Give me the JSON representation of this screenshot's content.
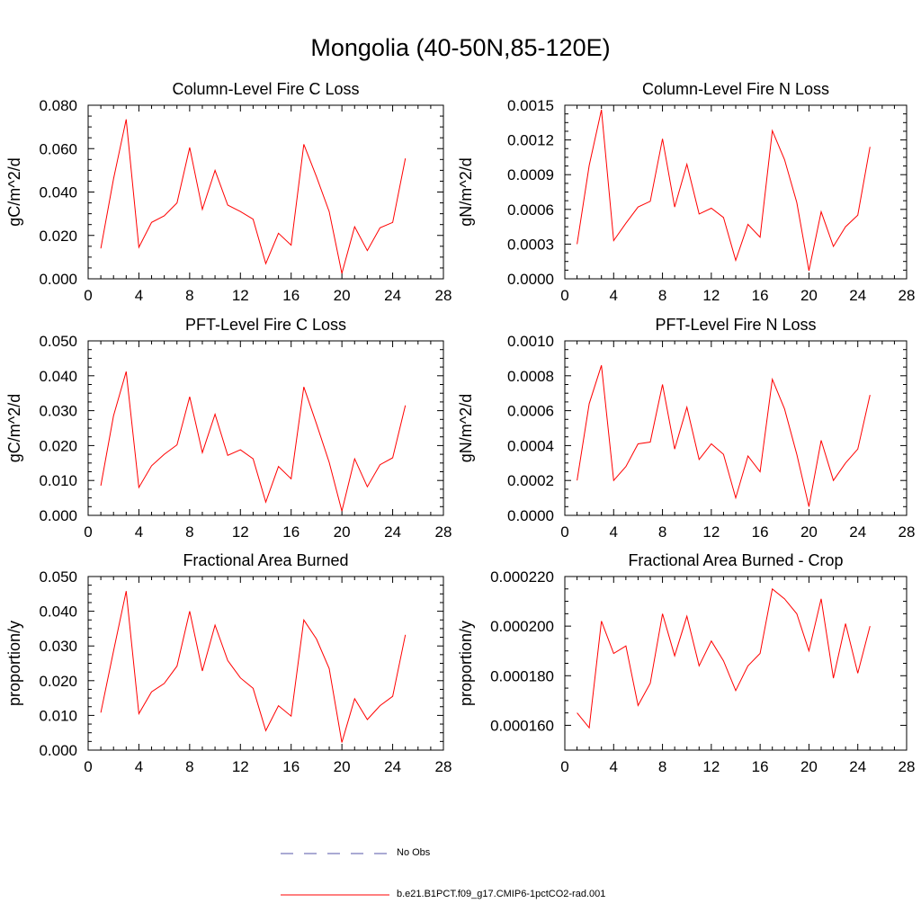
{
  "title": "Mongolia (40-50N,85-120E)",
  "legend": {
    "obs_label": "No Obs",
    "model_label": "b.e21.B1PCT.f09_g17.CMIP6-1pctCO2-rad.001",
    "obs_color": "#5555aa",
    "model_color": "#ff0000"
  },
  "chart_data": [
    {
      "type": "line",
      "title": "Column-Level Fire C Loss",
      "ylabel": "gC/m^2/d",
      "xlim": [
        0,
        28
      ],
      "ylim": [
        0,
        0.08
      ],
      "xticks": [
        "0",
        "4",
        "8",
        "12",
        "16",
        "20",
        "24",
        "28"
      ],
      "yticks": [
        "0.000",
        "0.020",
        "0.040",
        "0.060",
        "0.080"
      ],
      "x": [
        1,
        2,
        3,
        4,
        5,
        6,
        7,
        8,
        9,
        10,
        11,
        12,
        13,
        14,
        15,
        16,
        17,
        18,
        19,
        20,
        21,
        22,
        23,
        24,
        25
      ],
      "series": [
        {
          "values": [
            0.014,
            0.046,
            0.0735,
            0.0145,
            0.026,
            0.029,
            0.035,
            0.0605,
            0.032,
            0.05,
            0.034,
            0.031,
            0.0275,
            0.007,
            0.021,
            0.0155,
            0.062,
            0.047,
            0.031,
            0.0025,
            0.024,
            0.013,
            0.0235,
            0.026,
            0.0555
          ],
          "color": "#ff0000"
        }
      ]
    },
    {
      "type": "line",
      "title": "Column-Level Fire N Loss",
      "ylabel": "gN/m^2/d",
      "xlim": [
        0,
        28
      ],
      "ylim": [
        0,
        0.0015
      ],
      "xticks": [
        "0",
        "4",
        "8",
        "12",
        "16",
        "20",
        "24",
        "28"
      ],
      "yticks": [
        "0.0000",
        "0.0003",
        "0.0006",
        "0.0009",
        "0.0012",
        "0.0015"
      ],
      "x": [
        1,
        2,
        3,
        4,
        5,
        6,
        7,
        8,
        9,
        10,
        11,
        12,
        13,
        14,
        15,
        16,
        17,
        18,
        19,
        20,
        21,
        22,
        23,
        24,
        25
      ],
      "series": [
        {
          "values": [
            0.0003,
            0.00098,
            0.00146,
            0.00033,
            0.00048,
            0.00062,
            0.00067,
            0.00121,
            0.00062,
            0.00099,
            0.00056,
            0.00061,
            0.00053,
            0.00016,
            0.00047,
            0.00036,
            0.00128,
            0.00103,
            0.00066,
            7e-05,
            0.00058,
            0.00028,
            0.00045,
            0.00055,
            0.00114
          ],
          "color": "#ff0000"
        }
      ]
    },
    {
      "type": "line",
      "title": "PFT-Level Fire C Loss",
      "ylabel": "gC/m^2/d",
      "xlim": [
        0,
        28
      ],
      "ylim": [
        0,
        0.05
      ],
      "xticks": [
        "0",
        "4",
        "8",
        "12",
        "16",
        "20",
        "24",
        "28"
      ],
      "yticks": [
        "0.000",
        "0.010",
        "0.020",
        "0.030",
        "0.040",
        "0.050"
      ],
      "x": [
        1,
        2,
        3,
        4,
        5,
        6,
        7,
        8,
        9,
        10,
        11,
        12,
        13,
        14,
        15,
        16,
        17,
        18,
        19,
        20,
        21,
        22,
        23,
        24,
        25
      ],
      "series": [
        {
          "values": [
            0.0085,
            0.0285,
            0.0412,
            0.008,
            0.0142,
            0.0175,
            0.0202,
            0.034,
            0.018,
            0.029,
            0.0172,
            0.0188,
            0.0162,
            0.0038,
            0.014,
            0.0105,
            0.0368,
            0.0262,
            0.0152,
            0.0012,
            0.0162,
            0.0082,
            0.0145,
            0.0165,
            0.0315
          ],
          "color": "#ff0000"
        }
      ]
    },
    {
      "type": "line",
      "title": "PFT-Level Fire N Loss",
      "ylabel": "gN/m^2/d",
      "xlim": [
        0,
        28
      ],
      "ylim": [
        0,
        0.001
      ],
      "xticks": [
        "0",
        "4",
        "8",
        "12",
        "16",
        "20",
        "24",
        "28"
      ],
      "yticks": [
        "0.0000",
        "0.0002",
        "0.0004",
        "0.0006",
        "0.0008",
        "0.0010"
      ],
      "x": [
        1,
        2,
        3,
        4,
        5,
        6,
        7,
        8,
        9,
        10,
        11,
        12,
        13,
        14,
        15,
        16,
        17,
        18,
        19,
        20,
        21,
        22,
        23,
        24,
        25
      ],
      "series": [
        {
          "values": [
            0.0002,
            0.00064,
            0.00086,
            0.0002,
            0.00028,
            0.00041,
            0.00042,
            0.00075,
            0.00038,
            0.00062,
            0.00032,
            0.00041,
            0.00035,
            0.0001,
            0.00034,
            0.00025,
            0.00078,
            0.00061,
            0.00035,
            5e-05,
            0.00043,
            0.0002,
            0.0003,
            0.00038,
            0.00069
          ],
          "color": "#ff0000"
        }
      ]
    },
    {
      "type": "line",
      "title": "Fractional Area Burned",
      "ylabel": "proportion/y",
      "xlim": [
        0,
        28
      ],
      "ylim": [
        0,
        0.05
      ],
      "xticks": [
        "0",
        "4",
        "8",
        "12",
        "16",
        "20",
        "24",
        "28"
      ],
      "yticks": [
        "0.000",
        "0.010",
        "0.020",
        "0.030",
        "0.040",
        "0.050"
      ],
      "x": [
        1,
        2,
        3,
        4,
        5,
        6,
        7,
        8,
        9,
        10,
        11,
        12,
        13,
        14,
        15,
        16,
        17,
        18,
        19,
        20,
        21,
        22,
        23,
        24,
        25
      ],
      "series": [
        {
          "values": [
            0.0108,
            0.0285,
            0.0458,
            0.0105,
            0.0168,
            0.0192,
            0.0242,
            0.04,
            0.0228,
            0.036,
            0.0258,
            0.0208,
            0.0178,
            0.0056,
            0.0128,
            0.0098,
            0.0375,
            0.032,
            0.0235,
            0.0022,
            0.0148,
            0.0088,
            0.0128,
            0.0155,
            0.0332
          ],
          "color": "#ff0000"
        }
      ]
    },
    {
      "type": "line",
      "title": "Fractional Area Burned - Crop",
      "ylabel": "proportion/y",
      "xlim": [
        0,
        28
      ],
      "ylim": [
        0.00015,
        0.00022
      ],
      "xticks": [
        "0",
        "4",
        "8",
        "12",
        "16",
        "20",
        "24",
        "28"
      ],
      "yticks": [
        "0.000160",
        "0.000180",
        "0.000200",
        "0.000220"
      ],
      "ytick_values": [
        0.00016,
        0.00018,
        0.0002,
        0.00022
      ],
      "x": [
        1,
        2,
        3,
        4,
        5,
        6,
        7,
        8,
        9,
        10,
        11,
        12,
        13,
        14,
        15,
        16,
        17,
        18,
        19,
        20,
        21,
        22,
        23,
        24,
        25
      ],
      "series": [
        {
          "values": [
            0.000165,
            0.000159,
            0.000202,
            0.000189,
            0.000192,
            0.000168,
            0.000177,
            0.000205,
            0.000188,
            0.000204,
            0.000184,
            0.000194,
            0.000186,
            0.000174,
            0.000184,
            0.000189,
            0.000215,
            0.000211,
            0.000205,
            0.00019,
            0.000211,
            0.000179,
            0.000201,
            0.000181,
            0.0002
          ],
          "color": "#ff0000"
        }
      ]
    }
  ]
}
